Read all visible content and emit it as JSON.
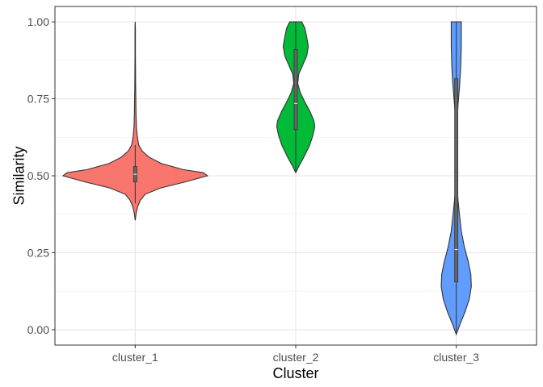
{
  "chart_data": {
    "type": "violin",
    "xlabel": "Cluster",
    "ylabel": "Similarity",
    "categories": [
      "cluster_1",
      "cluster_2",
      "cluster_3"
    ],
    "ylim": [
      -0.05,
      1.05
    ],
    "yticks": [
      0.0,
      0.25,
      0.5,
      0.75,
      1.0
    ],
    "ytick_labels": [
      "0.00",
      "0.25",
      "0.50",
      "0.75",
      "1.00"
    ],
    "grid": true,
    "theme": "white background, light gray major and minor gridlines, dark panel border",
    "colors": [
      "#F8766D",
      "#00BA38",
      "#619CFF"
    ],
    "series": [
      {
        "category": "cluster_1",
        "fill": "#F8766D",
        "range": [
          0.355,
          1.0
        ],
        "boxplot": {
          "q1": 0.48,
          "median": 0.505,
          "q3": 0.53,
          "whisker_low": 0.41,
          "whisker_high": 0.6
        },
        "density": [
          [
            0.355,
            0.0
          ],
          [
            0.38,
            0.01
          ],
          [
            0.4,
            0.025
          ],
          [
            0.42,
            0.05
          ],
          [
            0.44,
            0.1
          ],
          [
            0.46,
            0.25
          ],
          [
            0.48,
            0.5
          ],
          [
            0.5,
            0.72
          ],
          [
            0.51,
            0.68
          ],
          [
            0.52,
            0.48
          ],
          [
            0.54,
            0.26
          ],
          [
            0.56,
            0.14
          ],
          [
            0.58,
            0.07
          ],
          [
            0.6,
            0.035
          ],
          [
            0.63,
            0.02
          ],
          [
            0.66,
            0.012
          ],
          [
            0.7,
            0.008
          ],
          [
            0.8,
            0.004
          ],
          [
            0.9,
            0.002
          ],
          [
            0.98,
            0.002
          ],
          [
            1.0,
            0.0
          ]
        ]
      },
      {
        "category": "cluster_2",
        "fill": "#00BA38",
        "range": [
          0.51,
          1.0
        ],
        "boxplot": {
          "q1": 0.65,
          "median": 0.735,
          "q3": 0.91,
          "whisker_low": 0.51,
          "whisker_high": 1.0
        },
        "density": [
          [
            0.51,
            0.0
          ],
          [
            0.53,
            0.03
          ],
          [
            0.56,
            0.08
          ],
          [
            0.6,
            0.14
          ],
          [
            0.63,
            0.17
          ],
          [
            0.66,
            0.19
          ],
          [
            0.68,
            0.18
          ],
          [
            0.71,
            0.14
          ],
          [
            0.74,
            0.09
          ],
          [
            0.77,
            0.045
          ],
          [
            0.8,
            0.02
          ],
          [
            0.83,
            0.03
          ],
          [
            0.86,
            0.07
          ],
          [
            0.89,
            0.11
          ],
          [
            0.92,
            0.125
          ],
          [
            0.95,
            0.11
          ],
          [
            0.98,
            0.09
          ],
          [
            1.0,
            0.06
          ]
        ]
      },
      {
        "category": "cluster_3",
        "fill": "#619CFF",
        "range": [
          -0.015,
          1.0
        ],
        "boxplot": {
          "q1": 0.155,
          "median": 0.26,
          "q3": 0.815,
          "whisker_low": -0.015,
          "whisker_high": 1.0
        },
        "density": [
          [
            -0.015,
            0.0
          ],
          [
            0.02,
            0.04
          ],
          [
            0.06,
            0.09
          ],
          [
            0.1,
            0.13
          ],
          [
            0.14,
            0.15
          ],
          [
            0.18,
            0.145
          ],
          [
            0.22,
            0.12
          ],
          [
            0.27,
            0.08
          ],
          [
            0.32,
            0.05
          ],
          [
            0.38,
            0.03
          ],
          [
            0.44,
            0.012
          ],
          [
            0.5,
            0.004
          ],
          [
            0.56,
            0.002
          ],
          [
            0.62,
            0.002
          ],
          [
            0.68,
            0.006
          ],
          [
            0.74,
            0.02
          ],
          [
            0.8,
            0.035
          ],
          [
            0.86,
            0.045
          ],
          [
            0.92,
            0.05
          ],
          [
            0.97,
            0.05
          ],
          [
            1.0,
            0.05
          ]
        ]
      }
    ]
  }
}
